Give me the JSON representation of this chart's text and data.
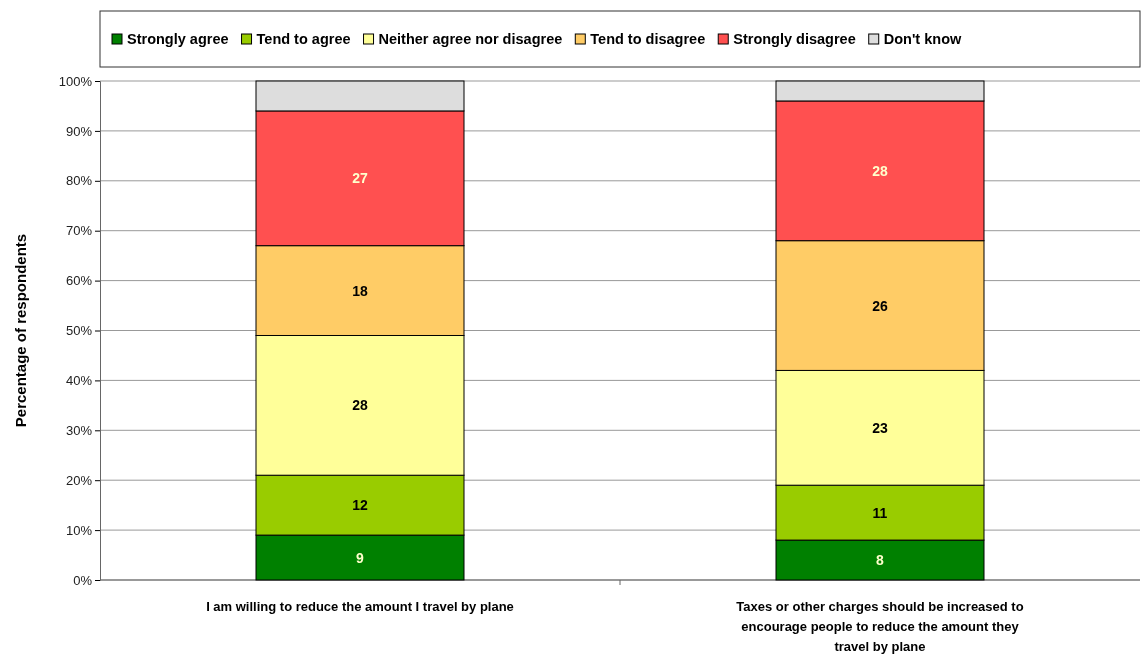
{
  "chart_data": {
    "type": "bar",
    "stacked": true,
    "categories": [
      "I am willing to reduce the amount I travel by plane",
      "Taxes or other charges should be increased to encourage people to reduce the amount they travel by plane"
    ],
    "ylabel": "Percentage of respondents",
    "ylim": [
      0,
      100
    ],
    "yticks": [
      {
        "value": 0,
        "label": "0%"
      },
      {
        "value": 10,
        "label": "10%"
      },
      {
        "value": 20,
        "label": "20%"
      },
      {
        "value": 30,
        "label": "30%"
      },
      {
        "value": 40,
        "label": "40%"
      },
      {
        "value": 50,
        "label": "50%"
      },
      {
        "value": 60,
        "label": "60%"
      },
      {
        "value": 70,
        "label": "70%"
      },
      {
        "value": 80,
        "label": "80%"
      },
      {
        "value": 90,
        "label": "90%"
      },
      {
        "value": 100,
        "label": "100%"
      }
    ],
    "grid": "y",
    "legend": "top",
    "series": [
      {
        "name": "Strongly agree",
        "color": "#008000",
        "values": [
          9,
          8
        ],
        "value_labels": [
          "9",
          "8"
        ]
      },
      {
        "name": "Tend to agree",
        "color": "#99cc00",
        "values": [
          12,
          11
        ],
        "value_labels": [
          "12",
          "11"
        ]
      },
      {
        "name": "Neither agree nor disagree",
        "color": "#ffff99",
        "values": [
          28,
          23
        ],
        "value_labels": [
          "28",
          "23"
        ]
      },
      {
        "name": "Tend to disagree",
        "color": "#ffcc66",
        "values": [
          18,
          26
        ],
        "value_labels": [
          "18",
          "26"
        ]
      },
      {
        "name": "Strongly disagree",
        "color": "#ff5050",
        "values": [
          27,
          28
        ],
        "value_labels": [
          "27",
          "28"
        ]
      },
      {
        "name": "Don't know",
        "color": "#dddddd",
        "values": [
          6,
          4
        ],
        "value_labels": [
          null,
          null
        ]
      }
    ]
  }
}
